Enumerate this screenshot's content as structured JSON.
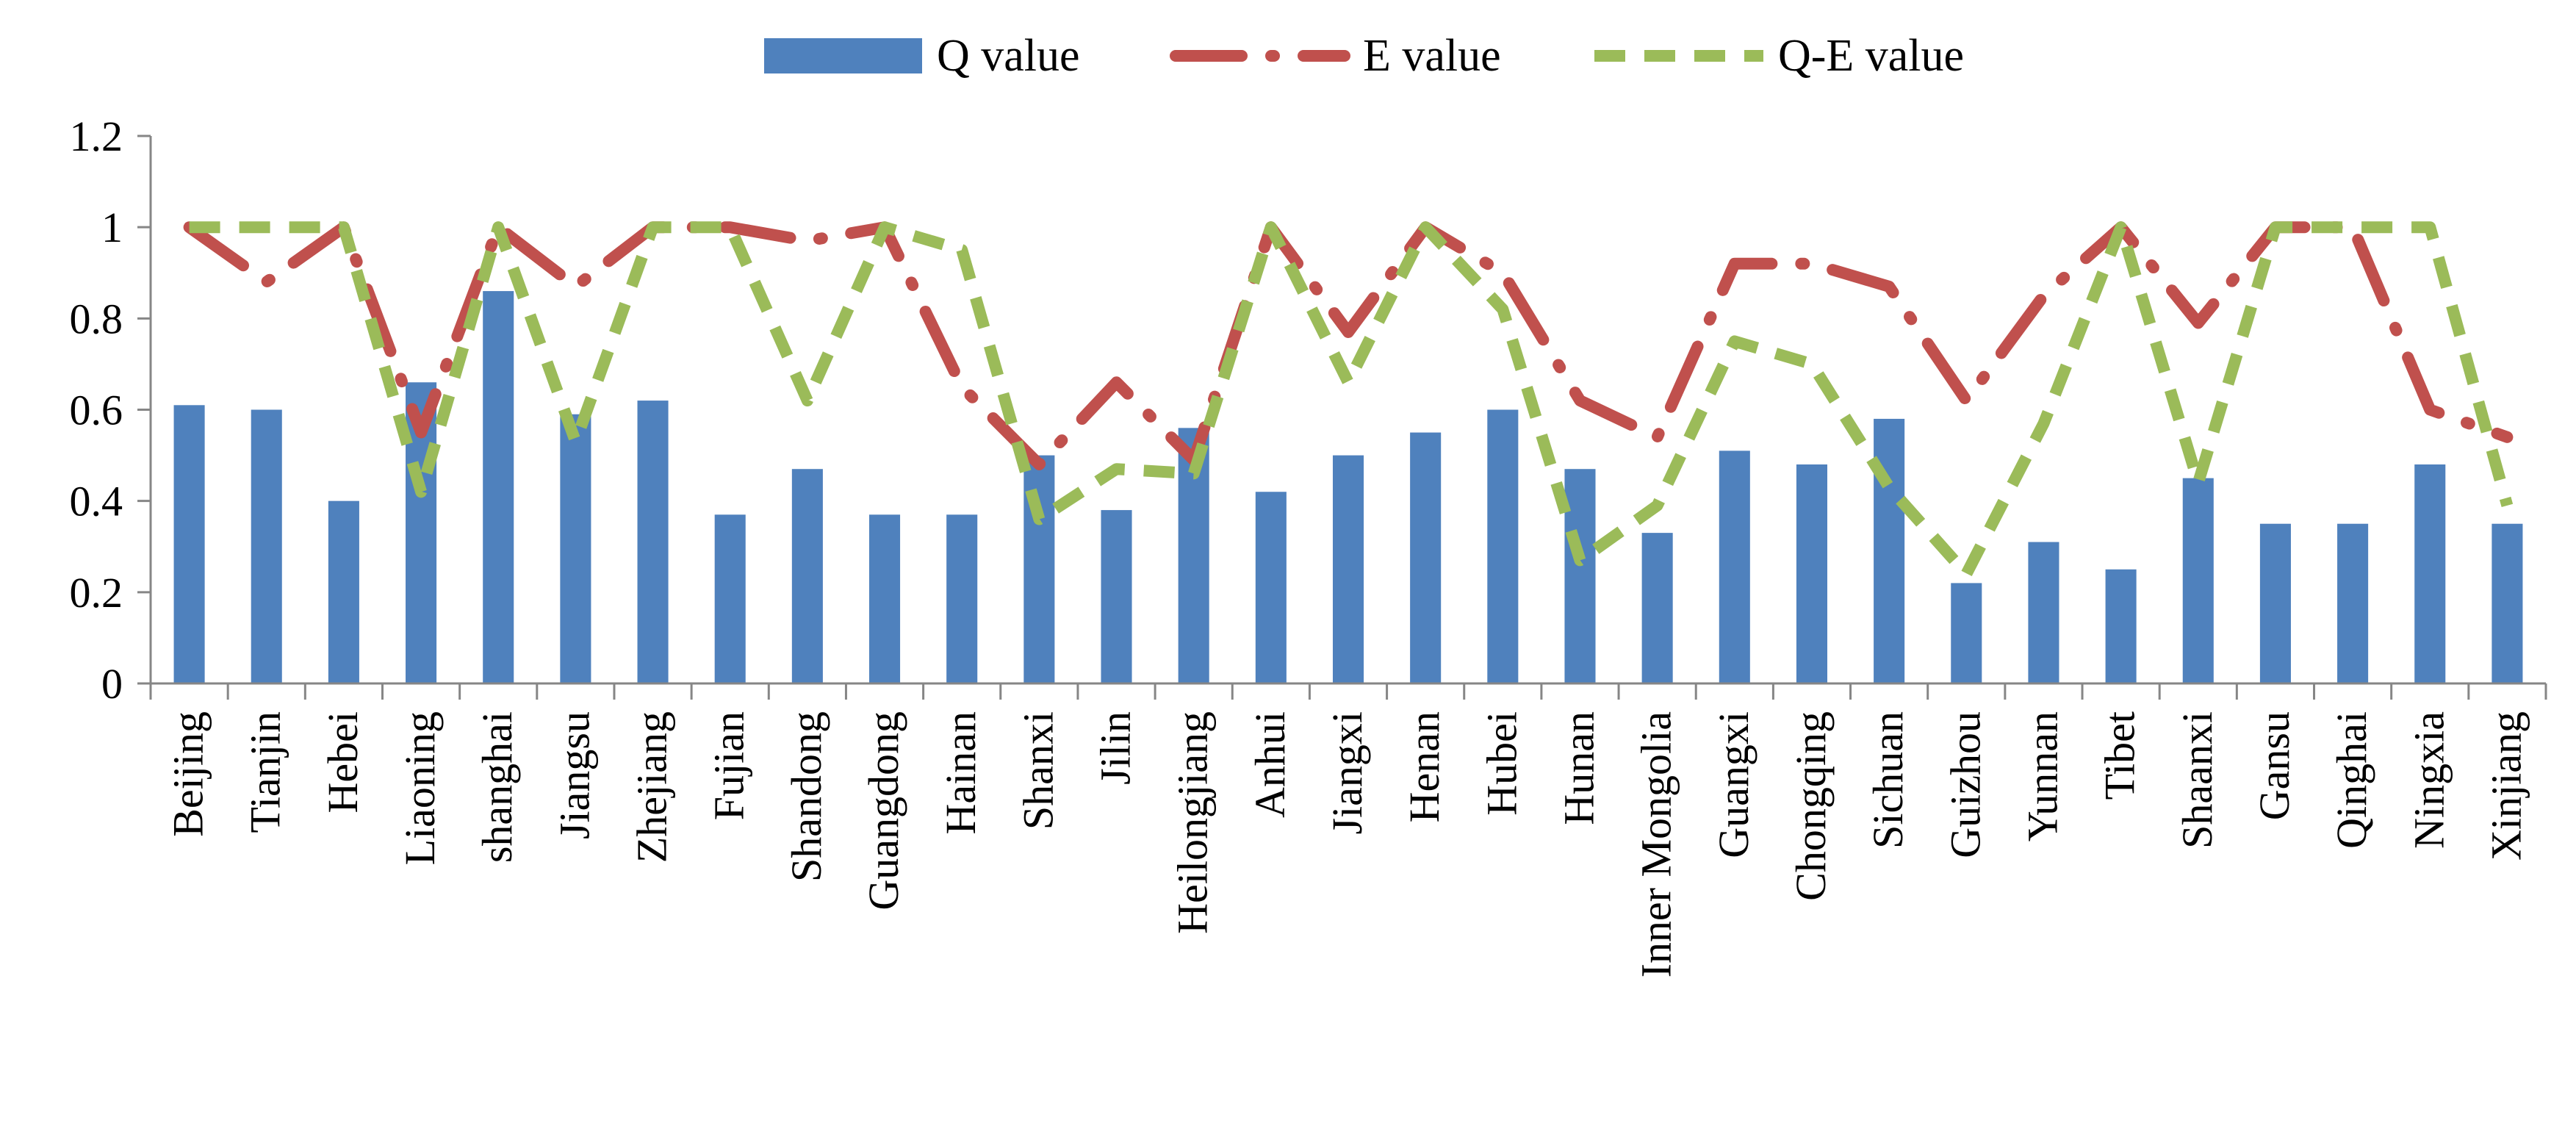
{
  "chart_data": {
    "type": "bar",
    "title": "",
    "xlabel": "",
    "ylabel": "",
    "ylim": [
      0,
      1.2
    ],
    "yticks": [
      0,
      0.2,
      0.4,
      0.6,
      0.8,
      1,
      1.2
    ],
    "ytick_labels": [
      "0",
      "0.2",
      "0.4",
      "0.6",
      "0.8",
      "1",
      "1.2"
    ],
    "grid": false,
    "legend_position": "top-center",
    "categories": [
      "Beijing",
      "Tianjin",
      "Hebei",
      "Liaoning",
      "shanghai",
      "Jiangsu",
      "Zhejiang",
      "Fujian",
      "Shandong",
      "Guangdong",
      "Hainan",
      "Shanxi",
      "Jilin",
      "Heilongjiang",
      "Anhui",
      "Jiangxi",
      "Henan",
      "Hubei",
      "Hunan",
      "Inner Mongolia",
      "Guangxi",
      "Chongqing",
      "Sichuan",
      "Guizhou",
      "Yunnan",
      "Tibet",
      "Shaanxi",
      "Gansu",
      "Qinghai",
      "Ningxia",
      "Xinjiang"
    ],
    "series": [
      {
        "name": "Q value",
        "type": "bar",
        "color": "#4F81BD",
        "values": [
          0.61,
          0.6,
          0.4,
          0.66,
          0.86,
          0.59,
          0.62,
          0.37,
          0.47,
          0.37,
          0.37,
          0.5,
          0.38,
          0.56,
          0.42,
          0.5,
          0.55,
          0.6,
          0.47,
          0.33,
          0.51,
          0.48,
          0.58,
          0.22,
          0.31,
          0.25,
          0.45,
          0.35,
          0.35,
          0.48,
          0.35
        ]
      },
      {
        "name": "E value",
        "type": "line",
        "style": "dash-dot",
        "color": "#C0504D",
        "values": [
          1.0,
          0.88,
          1.0,
          0.55,
          1.0,
          0.87,
          1.0,
          1.0,
          0.97,
          1.0,
          0.65,
          0.48,
          0.66,
          0.49,
          1.0,
          0.77,
          1.0,
          0.9,
          0.62,
          0.54,
          0.92,
          0.92,
          0.87,
          0.62,
          0.85,
          1.0,
          0.79,
          1.0,
          1.0,
          0.6,
          0.54
        ]
      },
      {
        "name": "Q-E value",
        "type": "line",
        "style": "dashed",
        "color": "#9BBB59",
        "values": [
          1.0,
          1.0,
          1.0,
          0.42,
          1.0,
          0.53,
          1.0,
          1.0,
          0.62,
          1.0,
          0.95,
          0.36,
          0.47,
          0.46,
          1.0,
          0.66,
          1.0,
          0.82,
          0.27,
          0.39,
          0.75,
          0.7,
          0.43,
          0.24,
          0.57,
          1.0,
          0.44,
          1.0,
          1.0,
          1.0,
          0.39
        ]
      }
    ]
  }
}
